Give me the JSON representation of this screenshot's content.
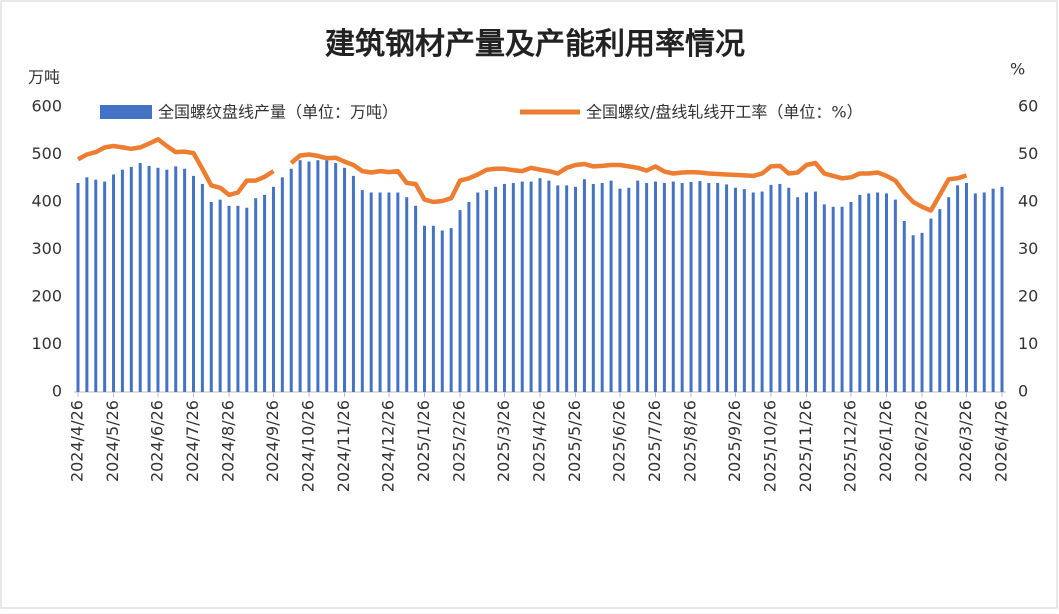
{
  "chart_data": {
    "type": "combo",
    "title": "建筑钢材产量及产能利用率情况",
    "y_label": "万吨",
    "y2_label": "%",
    "categories": [
      "2024/4/26",
      null,
      null,
      null,
      "2024/5/26",
      null,
      null,
      null,
      null,
      "2024/6/26",
      null,
      null,
      null,
      "2024/7/26",
      null,
      null,
      null,
      "2024/8/26",
      null,
      null,
      null,
      null,
      "2024/9/26",
      null,
      null,
      null,
      "2024/10/26",
      null,
      null,
      null,
      "2024/11/26",
      null,
      null,
      null,
      null,
      "2024/12/26",
      null,
      null,
      null,
      "2025/1/26",
      null,
      null,
      null,
      "2025/2/26",
      null,
      null,
      null,
      null,
      "2025/3/26",
      null,
      null,
      null,
      "2025/4/26",
      null,
      null,
      null,
      "2025/5/26",
      null,
      null,
      null,
      null,
      "2025/6/26",
      null,
      null,
      null,
      "2025/7/26",
      null,
      null,
      null,
      "2025/8/26",
      null,
      null,
      null,
      null,
      "2025/9/26",
      null,
      null,
      null,
      "2025/10/26",
      null,
      null,
      null,
      "2025/11/26",
      null,
      null,
      null,
      null,
      "2025/12/26",
      null,
      null,
      null,
      "2026/1/26",
      null,
      null,
      null,
      "2026/2/26",
      null,
      null,
      null,
      null,
      "2026/3/26",
      null,
      null,
      null,
      "2026/4/26"
    ],
    "series": [
      {
        "name": "全国螺纹盘线产量（单位：万吨）",
        "type": "bar",
        "axis": "y",
        "color": "#4472c4",
        "values": [
          440,
          452,
          447,
          443,
          458,
          468,
          474,
          482,
          476,
          472,
          468,
          475,
          470,
          455,
          438,
          400,
          405,
          392,
          392,
          388,
          408,
          415,
          432,
          452,
          470,
          488,
          485,
          488,
          490,
          482,
          472,
          455,
          425,
          420,
          420,
          420,
          420,
          410,
          392,
          350,
          350,
          340,
          345,
          383,
          400,
          420,
          425,
          432,
          438,
          440,
          443,
          443,
          450,
          445,
          435,
          435,
          432,
          448,
          438,
          440,
          445,
          428,
          430,
          445,
          440,
          443,
          440,
          443,
          440,
          442,
          444,
          440,
          440,
          437,
          430,
          427,
          420,
          422,
          436,
          438,
          430,
          410,
          420,
          422,
          395,
          390,
          390,
          400,
          415,
          418,
          420,
          418,
          405,
          360,
          330,
          335,
          365,
          385,
          410,
          435,
          440,
          418,
          420,
          428,
          432
        ]
      },
      {
        "name": "全国螺纹/盘线轧线开工率（单位：%）",
        "type": "line",
        "axis": "y2",
        "color": "#ed7d31",
        "values": [
          49,
          50,
          50.5,
          51.5,
          51.8,
          51.5,
          51.2,
          51.5,
          52.3,
          53.2,
          51.8,
          50.5,
          50.6,
          50.3,
          47,
          43.5,
          43,
          41.5,
          42,
          44.5,
          44.5,
          45.3,
          46.5,
          null,
          48.2,
          49.8,
          50,
          49.7,
          49.2,
          49.3,
          48.5,
          47.8,
          46.5,
          46.2,
          46.5,
          46.3,
          46.5,
          44,
          43.8,
          40.5,
          40,
          40.2,
          40.8,
          44.5,
          45,
          45.8,
          46.8,
          47,
          47,
          46.7,
          46.5,
          47.2,
          46.8,
          46.5,
          46,
          47.2,
          47.8,
          48,
          47.5,
          47.6,
          47.8,
          47.8,
          47.5,
          47.2,
          46.6,
          47.5,
          46.4,
          46,
          46.2,
          46.3,
          46.2,
          46,
          45.9,
          45.8,
          45.7,
          45.6,
          45.5,
          46,
          47.5,
          47.6,
          46,
          46.2,
          47.8,
          48.2,
          46,
          45.5,
          45,
          45.2,
          46,
          46,
          46.2,
          45.5,
          44.5,
          42,
          40,
          39,
          38.2,
          41.5,
          44.8,
          45,
          45.6,
          null,
          null,
          null,
          null
        ]
      }
    ],
    "ylim": [
      0,
      600
    ],
    "yticks": [
      0,
      100,
      200,
      300,
      400,
      500,
      600
    ],
    "y2lim": [
      0,
      60
    ],
    "y2ticks": [
      0,
      10,
      20,
      30,
      40,
      50,
      60
    ],
    "grid": false
  }
}
